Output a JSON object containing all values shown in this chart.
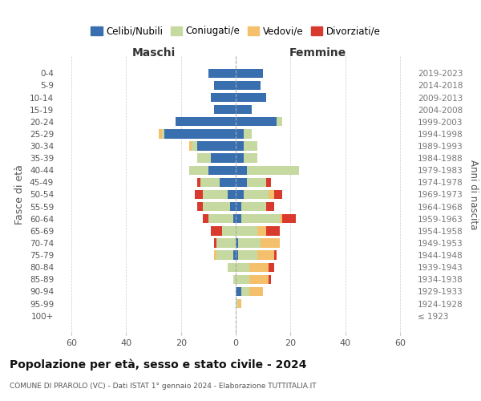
{
  "age_groups": [
    "0-4",
    "5-9",
    "10-14",
    "15-19",
    "20-24",
    "25-29",
    "30-34",
    "35-39",
    "40-44",
    "45-49",
    "50-54",
    "55-59",
    "60-64",
    "65-69",
    "70-74",
    "75-79",
    "80-84",
    "85-89",
    "90-94",
    "95-99",
    "100+"
  ],
  "birth_years": [
    "2019-2023",
    "2014-2018",
    "2009-2013",
    "2004-2008",
    "1999-2003",
    "1994-1998",
    "1989-1993",
    "1984-1988",
    "1979-1983",
    "1974-1978",
    "1969-1973",
    "1964-1968",
    "1959-1963",
    "1954-1958",
    "1949-1953",
    "1944-1948",
    "1939-1943",
    "1934-1938",
    "1929-1933",
    "1924-1928",
    "≤ 1923"
  ],
  "maschi": {
    "celibe": [
      10,
      8,
      9,
      8,
      22,
      26,
      14,
      9,
      10,
      6,
      3,
      2,
      1,
      0,
      0,
      1,
      0,
      0,
      0,
      0,
      0
    ],
    "coniugato": [
      0,
      0,
      0,
      0,
      0,
      1,
      2,
      5,
      7,
      7,
      9,
      10,
      9,
      5,
      7,
      6,
      3,
      1,
      0,
      0,
      0
    ],
    "vedovo": [
      0,
      0,
      0,
      0,
      0,
      1,
      1,
      0,
      0,
      0,
      0,
      0,
      0,
      0,
      0,
      1,
      0,
      0,
      0,
      0,
      0
    ],
    "divorziato": [
      0,
      0,
      0,
      0,
      0,
      0,
      0,
      0,
      0,
      1,
      3,
      2,
      2,
      4,
      1,
      0,
      0,
      0,
      0,
      0,
      0
    ]
  },
  "femmine": {
    "nubile": [
      10,
      9,
      11,
      6,
      15,
      3,
      3,
      3,
      4,
      4,
      3,
      2,
      2,
      0,
      1,
      1,
      0,
      0,
      2,
      0,
      0
    ],
    "coniugata": [
      0,
      0,
      0,
      0,
      2,
      3,
      5,
      5,
      19,
      7,
      9,
      9,
      14,
      8,
      8,
      7,
      5,
      5,
      3,
      1,
      0
    ],
    "vedova": [
      0,
      0,
      0,
      0,
      0,
      0,
      0,
      0,
      0,
      0,
      2,
      0,
      1,
      3,
      7,
      6,
      7,
      7,
      5,
      1,
      0
    ],
    "divorziata": [
      0,
      0,
      0,
      0,
      0,
      0,
      0,
      0,
      0,
      2,
      3,
      3,
      5,
      5,
      0,
      1,
      2,
      1,
      0,
      0,
      0
    ]
  },
  "colors": {
    "celibe_nubile": "#3a6faf",
    "coniugato": "#c5d9a0",
    "vedovo": "#f5c06b",
    "divorziato": "#d93a2e"
  },
  "xlim": 65,
  "title": "Popolazione per età, sesso e stato civile - 2024",
  "subtitle": "COMUNE DI PRAROLO (VC) - Dati ISTAT 1° gennaio 2024 - Elaborazione TUTTITALIA.IT",
  "xlabel_left": "Maschi",
  "xlabel_right": "Femmine",
  "ylabel_left": "Fasce di età",
  "ylabel_right": "Anni di nascita",
  "legend_labels": [
    "Celibi/Nubili",
    "Coniugati/e",
    "Vedovi/e",
    "Divorziati/e"
  ]
}
